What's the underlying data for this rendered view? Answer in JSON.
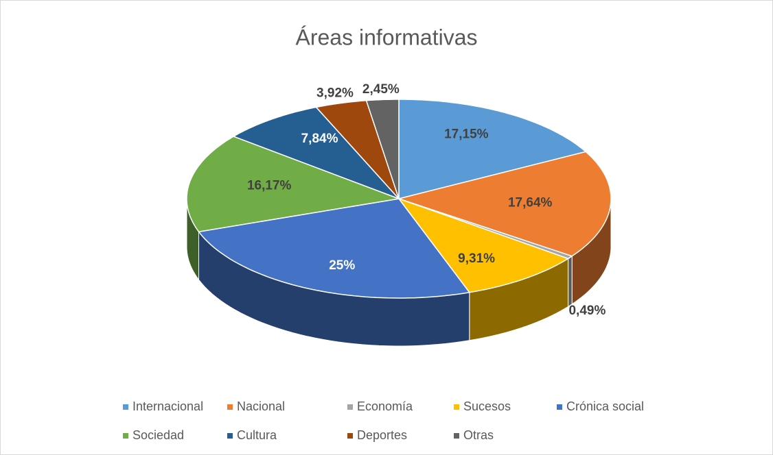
{
  "chart_data": {
    "type": "pie",
    "title": "Áreas informativas",
    "categories": [
      "Internacional",
      "Nacional",
      "Economía",
      "Sucesos",
      "Crónica social",
      "Sociedad",
      "Cultura",
      "Deportes",
      "Otras"
    ],
    "values": [
      17.15,
      17.64,
      0.49,
      9.31,
      25,
      16.17,
      7.84,
      3.92,
      2.45
    ],
    "value_labels": [
      "17,15%",
      "17,64%",
      "0,49%",
      "9,31%",
      "25%",
      "16,17%",
      "7,84%",
      "3,92%",
      "2,45%"
    ],
    "colors": [
      "#5b9bd5",
      "#ed7d31",
      "#a5a5a5",
      "#ffc000",
      "#4472c4",
      "#70ad47",
      "#255e91",
      "#9e480e",
      "#636363"
    ],
    "legend": "bottom"
  }
}
